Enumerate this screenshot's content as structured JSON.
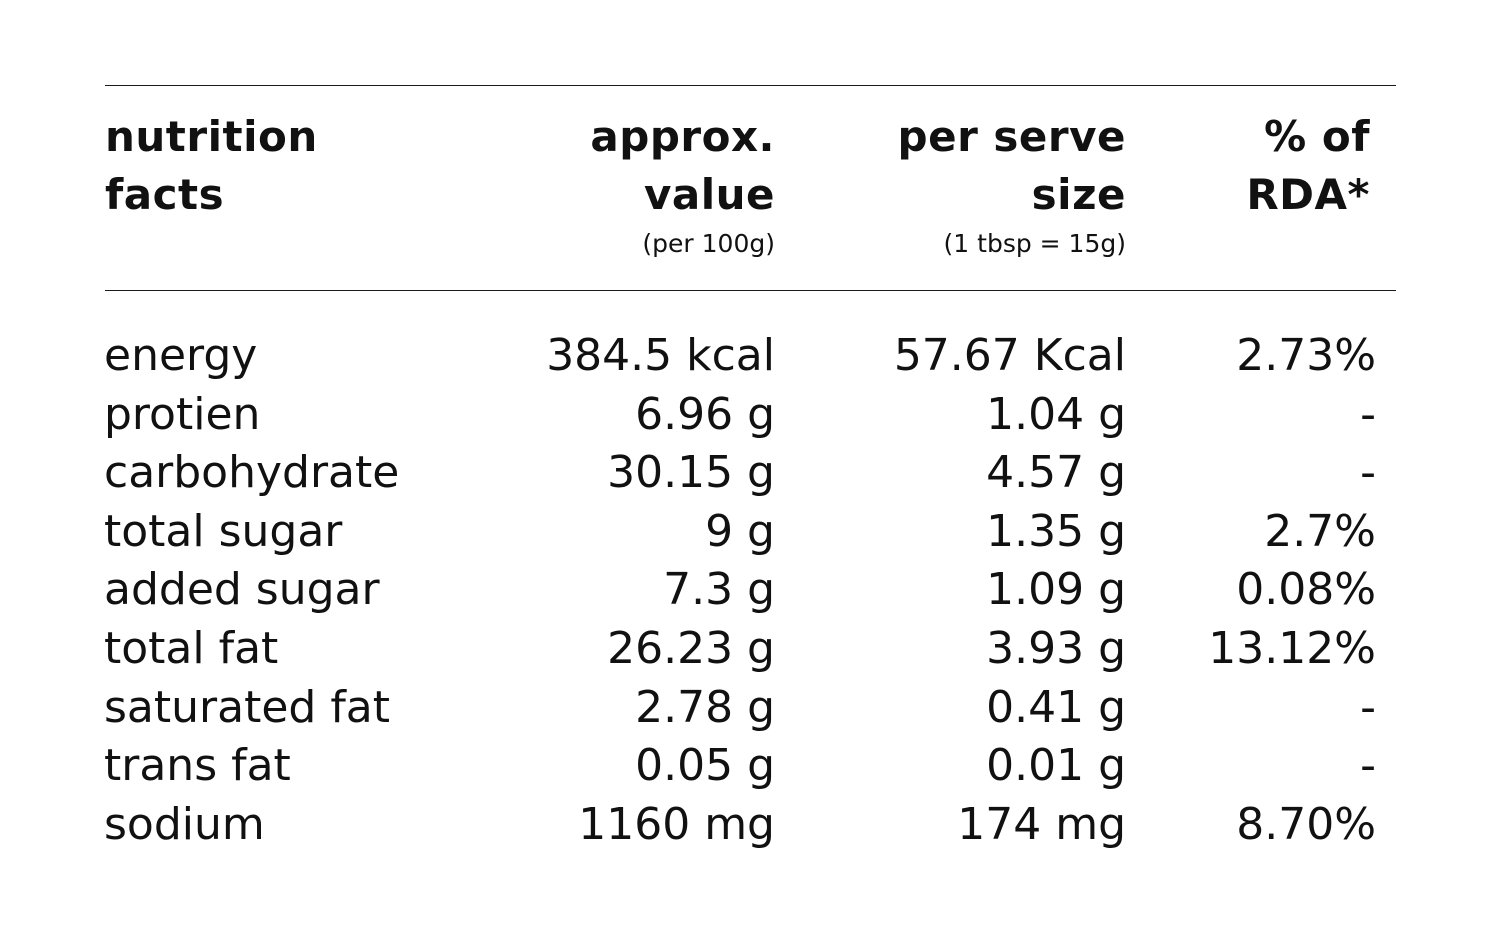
{
  "table": {
    "headers": {
      "name": [
        "nutrition",
        "facts"
      ],
      "approx": [
        "approx.",
        "value"
      ],
      "approx_sub": "(per 100g)",
      "serve": [
        "per serve",
        "size"
      ],
      "serve_sub": "(1 tbsp = 15g)",
      "rda": [
        "% of",
        "RDA*"
      ]
    },
    "rows": [
      {
        "name": "energy",
        "approx": "384.5 kcal",
        "serve": "57.67 Kcal",
        "rda": "2.73%"
      },
      {
        "name": "protien",
        "approx": "6.96 g",
        "serve": "1.04 g",
        "rda": "-"
      },
      {
        "name": "carbohydrate",
        "approx": "30.15 g",
        "serve": "4.57 g",
        "rda": "-"
      },
      {
        "name": "total sugar",
        "approx": "9 g",
        "serve": "1.35 g",
        "rda": "2.7%"
      },
      {
        "name": "added sugar",
        "approx": "7.3 g",
        "serve": "1.09 g",
        "rda": "0.08%"
      },
      {
        "name": "total fat",
        "approx": "26.23 g",
        "serve": "3.93 g",
        "rda": "13.12%"
      },
      {
        "name": "saturated fat",
        "approx": "2.78 g",
        "serve": "0.41 g",
        "rda": "-"
      },
      {
        "name": "trans fat",
        "approx": "0.05 g",
        "serve": "0.01 g",
        "rda": "-"
      },
      {
        "name": "sodium",
        "approx": "1160 mg",
        "serve": "174 mg",
        "rda": "8.70%"
      }
    ]
  }
}
